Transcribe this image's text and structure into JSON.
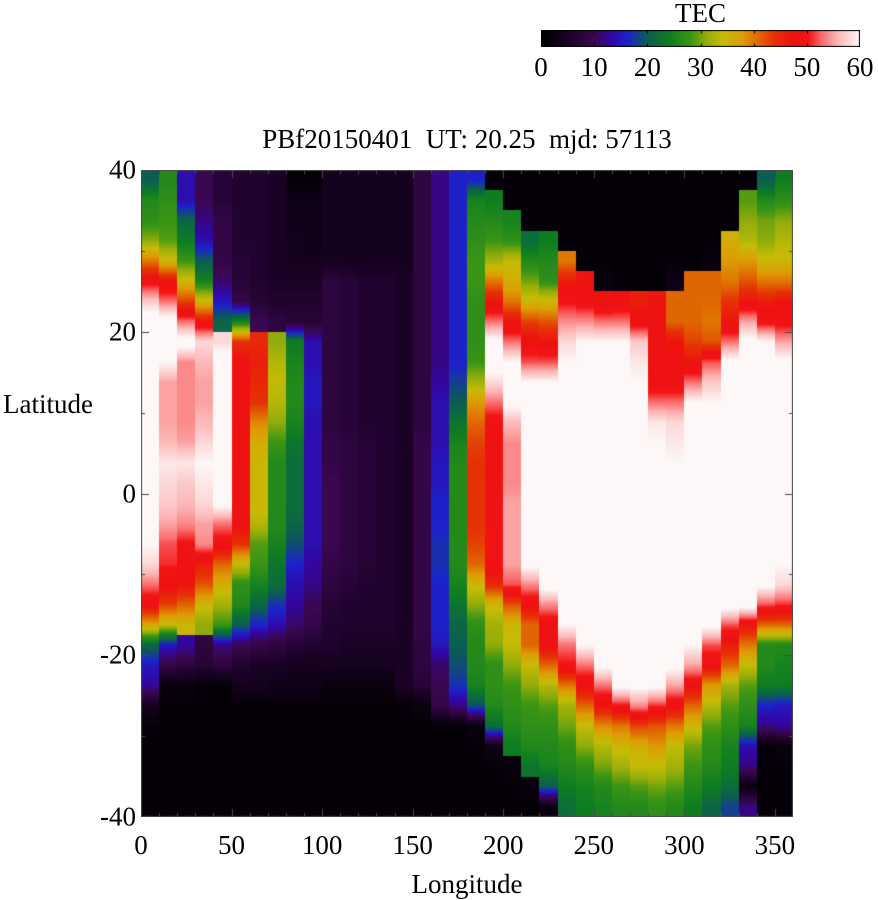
{
  "chart_data": {
    "type": "heatmap",
    "title": "PBf20150401  UT: 20.25  mjd: 57113",
    "xlabel": "Longitude",
    "ylabel": "Latitude",
    "xlim": [
      0,
      360
    ],
    "ylim": [
      -40,
      40
    ],
    "x_ticks": [
      0,
      50,
      100,
      150,
      200,
      250,
      300,
      350
    ],
    "x_minor_step": 10,
    "y_ticks": [
      40,
      20,
      0,
      -20,
      -40
    ],
    "y_minor_step": 10,
    "grid_lines": false,
    "colorbar": {
      "label": "TEC",
      "range": [
        0,
        60
      ],
      "ticks": [
        0,
        10,
        20,
        30,
        40,
        50,
        60
      ],
      "palette_stops": [
        {
          "t": 0.0,
          "color": "#000000"
        },
        {
          "t": 0.083,
          "color": "#1a0226"
        },
        {
          "t": 0.167,
          "color": "#3a0750"
        },
        {
          "t": 0.22,
          "color": "#3306a3"
        },
        {
          "t": 0.27,
          "color": "#1c23cc"
        },
        {
          "t": 0.333,
          "color": "#0b5e52"
        },
        {
          "t": 0.4,
          "color": "#0d7d22"
        },
        {
          "t": 0.47,
          "color": "#3c9614"
        },
        {
          "t": 0.52,
          "color": "#96ad0a"
        },
        {
          "t": 0.57,
          "color": "#c6bc06"
        },
        {
          "t": 0.63,
          "color": "#dd9d04"
        },
        {
          "t": 0.68,
          "color": "#e06a02"
        },
        {
          "t": 0.73,
          "color": "#e63205"
        },
        {
          "t": 0.79,
          "color": "#ee1111"
        },
        {
          "t": 0.84,
          "color": "#f31515"
        },
        {
          "t": 0.88,
          "color": "#f96c6c"
        },
        {
          "t": 0.93,
          "color": "#fcb6b6"
        },
        {
          "t": 1.0,
          "color": "#fdf7f7"
        }
      ]
    },
    "grid": {
      "lon_start": 0,
      "lon_step": 10,
      "lat_start": 40,
      "lat_step": -2.5,
      "cols": 36,
      "rows": 32
    },
    "values": [
      [
        20,
        26,
        14,
        10,
        7,
        6,
        6,
        5,
        1,
        1,
        4,
        4,
        4,
        4,
        4,
        8,
        12,
        16,
        16,
        1,
        1,
        1,
        1,
        1,
        1,
        1,
        1,
        1,
        1,
        1,
        1,
        1,
        1,
        1,
        20,
        24
      ],
      [
        26,
        27,
        14,
        10,
        7,
        6,
        6,
        5,
        3,
        3,
        4,
        4,
        4,
        4,
        4,
        8,
        12,
        16,
        25,
        24,
        1,
        1,
        1,
        1,
        1,
        1,
        1,
        1,
        1,
        1,
        1,
        1,
        1,
        29,
        26,
        27
      ],
      [
        27,
        28,
        21,
        12,
        9,
        6,
        6,
        5,
        3,
        3,
        4,
        4,
        4,
        4,
        4,
        8,
        12,
        16,
        26,
        26,
        25,
        1,
        1,
        1,
        1,
        1,
        1,
        1,
        1,
        1,
        1,
        1,
        1,
        31,
        30,
        31
      ],
      [
        31,
        29,
        24,
        14,
        9,
        6,
        6,
        5,
        4,
        3,
        4,
        4,
        4,
        4,
        4,
        8,
        12,
        16,
        27,
        28,
        27,
        22,
        24,
        1,
        1,
        1,
        1,
        1,
        1,
        1,
        1,
        1,
        36,
        33,
        31,
        33
      ],
      [
        40,
        35,
        28,
        20,
        9,
        7,
        6,
        5,
        4,
        4,
        4,
        4,
        4,
        4,
        4,
        8,
        12,
        16,
        28,
        32,
        34,
        26,
        26,
        40,
        1,
        1,
        1,
        1,
        1,
        1,
        1,
        2,
        38,
        38,
        35,
        35
      ],
      [
        49,
        47,
        35,
        25,
        11,
        7,
        6,
        5,
        5,
        5,
        8,
        7,
        6,
        6,
        5,
        8,
        12,
        16,
        28,
        40,
        36,
        30,
        27,
        46,
        47,
        2,
        1,
        1,
        1,
        3,
        41,
        41,
        40,
        42,
        40,
        40
      ],
      [
        57,
        53,
        43,
        35,
        15,
        9,
        7,
        6,
        6,
        6,
        8,
        7,
        6,
        6,
        5,
        8,
        12,
        16,
        27,
        47,
        40,
        35,
        35,
        50,
        49,
        47,
        48,
        46,
        47,
        41,
        41,
        41,
        44,
        47,
        46,
        47
      ],
      [
        63,
        62,
        53,
        47,
        21,
        25,
        10,
        8,
        7,
        7,
        8,
        7,
        6,
        6,
        5,
        8,
        12,
        16,
        27,
        53,
        47,
        43,
        42,
        54,
        54,
        53,
        53,
        48,
        48,
        41,
        41,
        40,
        47,
        55,
        49,
        49
      ],
      [
        63,
        63,
        62,
        58,
        58,
        44,
        45,
        31,
        24,
        14,
        8,
        7,
        6,
        6,
        5,
        8,
        12,
        16,
        27,
        61,
        53,
        48,
        47,
        58,
        60,
        60,
        60,
        57,
        48,
        47,
        43,
        42,
        53,
        61,
        60,
        55
      ],
      [
        63,
        60,
        54,
        56,
        62,
        48,
        46,
        33,
        25,
        14,
        8,
        7,
        6,
        6,
        5,
        8,
        12,
        16,
        28,
        62,
        60,
        52,
        52,
        60,
        61,
        62,
        62,
        59,
        48,
        48,
        47,
        52,
        61,
        62,
        62,
        61
      ],
      [
        62,
        55,
        54,
        55,
        62,
        48,
        45,
        34,
        26,
        15,
        8,
        7,
        6,
        6,
        5,
        8,
        13,
        18,
        32,
        58,
        62,
        60,
        60,
        61,
        62,
        62,
        62,
        60,
        48,
        48,
        53,
        57,
        62,
        62,
        62,
        62
      ],
      [
        61,
        55,
        54,
        55,
        61,
        48,
        44,
        33,
        26,
        15,
        8,
        7,
        6,
        6,
        5,
        8,
        14,
        20,
        38,
        53,
        61,
        62,
        62,
        62,
        62,
        62,
        62,
        61,
        53,
        53,
        60,
        60,
        62,
        63,
        63,
        62
      ],
      [
        61,
        55,
        54,
        56,
        60,
        48,
        39,
        31,
        25,
        14,
        8,
        7,
        6,
        6,
        5,
        8,
        14,
        23,
        41,
        49,
        56,
        62,
        62,
        62,
        62,
        62,
        62,
        61,
        59,
        58,
        61,
        61,
        62,
        63,
        63,
        62
      ],
      [
        60,
        56,
        55,
        58,
        60,
        47,
        36,
        28,
        23,
        14,
        9,
        8,
        7,
        6,
        5,
        9,
        14,
        25,
        43,
        48,
        54,
        62,
        62,
        62,
        62,
        62,
        62,
        62,
        60,
        59,
        61,
        61,
        62,
        63,
        63,
        62
      ],
      [
        62,
        59,
        59,
        60,
        61,
        48,
        35,
        26,
        22,
        14,
        9,
        8,
        7,
        6,
        5,
        9,
        15,
        26,
        44,
        48,
        54,
        62,
        62,
        62,
        62,
        62,
        62,
        62,
        61,
        60,
        62,
        62,
        62,
        63,
        63,
        62
      ],
      [
        62,
        58,
        57,
        59,
        61,
        48,
        35,
        26,
        22,
        14,
        10,
        8,
        7,
        6,
        5,
        9,
        15,
        26,
        44,
        49,
        54,
        62,
        62,
        62,
        62,
        62,
        62,
        62,
        61,
        61,
        62,
        62,
        62,
        63,
        63,
        62
      ],
      [
        61,
        57,
        56,
        58,
        61,
        48,
        35,
        26,
        22,
        14,
        10,
        8,
        7,
        6,
        5,
        9,
        16,
        26,
        44,
        49,
        55,
        62,
        62,
        62,
        62,
        62,
        62,
        62,
        62,
        61,
        62,
        62,
        62,
        63,
        62,
        62
      ],
      [
        61,
        55,
        54,
        55,
        53,
        48,
        33,
        26,
        21,
        14,
        10,
        8,
        7,
        6,
        5,
        9,
        16,
        26,
        44,
        49,
        55,
        62,
        62,
        62,
        62,
        62,
        62,
        62,
        62,
        61,
        62,
        62,
        62,
        62,
        62,
        61
      ],
      [
        60,
        52,
        50,
        54,
        49,
        44,
        29,
        25,
        19,
        14,
        10,
        8,
        7,
        6,
        5,
        9,
        17,
        26,
        43,
        50,
        55,
        62,
        62,
        62,
        62,
        62,
        62,
        62,
        62,
        62,
        62,
        62,
        62,
        62,
        62,
        61
      ],
      [
        58,
        51,
        48,
        46,
        41,
        34,
        28,
        23,
        16,
        13,
        9,
        8,
        7,
        6,
        5,
        9,
        17,
        26,
        41,
        49,
        55,
        61,
        62,
        62,
        62,
        62,
        62,
        62,
        62,
        62,
        62,
        61,
        62,
        62,
        61,
        60
      ],
      [
        53,
        48,
        47,
        42,
        36,
        27,
        25,
        22,
        14,
        12,
        8,
        7,
        6,
        6,
        5,
        9,
        16,
        25,
        35,
        45,
        52,
        54,
        62,
        62,
        62,
        62,
        62,
        62,
        62,
        62,
        62,
        61,
        62,
        62,
        61,
        58
      ],
      [
        48,
        43,
        41,
        35,
        32,
        26,
        21,
        17,
        13,
        10,
        7,
        6,
        6,
        6,
        5,
        9,
        16,
        23,
        31,
        35,
        42,
        48,
        54,
        62,
        62,
        62,
        62,
        62,
        62,
        62,
        62,
        62,
        62,
        62,
        52,
        51
      ],
      [
        37,
        34,
        35,
        31,
        28,
        20,
        16,
        14,
        11,
        9,
        6,
        6,
        6,
        6,
        5,
        9,
        16,
        21,
        27,
        32,
        35,
        41,
        48,
        60,
        62,
        62,
        62,
        62,
        62,
        62,
        62,
        61,
        52,
        47,
        41,
        41
      ],
      [
        21,
        15,
        13,
        8,
        12,
        10,
        9,
        8,
        7,
        6,
        6,
        5,
        5,
        5,
        5,
        8,
        15,
        20,
        26,
        31,
        34,
        41,
        48,
        53,
        60,
        61,
        62,
        62,
        62,
        61,
        60,
        52,
        46,
        40,
        26,
        26
      ],
      [
        15,
        9,
        8,
        7,
        8,
        6,
        5,
        5,
        4,
        4,
        4,
        4,
        4,
        4,
        5,
        8,
        11,
        19,
        26,
        27,
        31,
        34,
        41,
        50,
        53,
        61,
        62,
        62,
        62,
        61,
        55,
        48,
        41,
        34,
        26,
        25
      ],
      [
        13,
        2,
        2,
        1,
        1,
        4,
        4,
        3,
        3,
        3,
        2,
        2,
        2,
        2,
        5,
        7,
        10,
        17,
        25,
        27,
        28,
        31,
        33,
        40,
        48,
        53,
        61,
        61,
        61,
        55,
        48,
        38,
        32,
        29,
        24,
        24
      ],
      [
        4,
        1,
        1,
        1,
        1,
        1,
        1,
        1,
        1,
        1,
        1,
        1,
        1,
        1,
        1,
        2,
        9,
        12,
        19,
        26,
        27,
        28,
        29,
        32,
        41,
        47,
        50,
        54,
        51,
        48,
        41,
        33,
        29,
        27,
        16,
        15
      ],
      [
        1,
        1,
        1,
        1,
        1,
        1,
        1,
        1,
        1,
        1,
        1,
        1,
        1,
        1,
        1,
        1,
        1,
        1,
        2,
        22,
        26,
        27,
        27,
        30,
        34,
        39,
        40,
        43,
        42,
        40,
        35,
        29,
        27,
        25,
        12,
        13
      ],
      [
        1,
        1,
        1,
        1,
        1,
        1,
        1,
        1,
        1,
        1,
        1,
        1,
        1,
        1,
        1,
        1,
        1,
        1,
        1,
        3,
        24,
        26,
        26,
        27,
        31,
        33,
        35,
        36,
        38,
        34,
        30,
        27,
        25,
        14,
        1,
        2
      ],
      [
        1,
        1,
        1,
        1,
        1,
        1,
        1,
        1,
        1,
        1,
        1,
        1,
        1,
        1,
        1,
        1,
        1,
        1,
        1,
        1,
        2,
        23,
        25,
        26,
        27,
        30,
        32,
        34,
        34,
        32,
        28,
        26,
        24,
        12,
        1,
        1
      ],
      [
        1,
        1,
        1,
        1,
        1,
        1,
        1,
        1,
        1,
        1,
        1,
        1,
        1,
        1,
        1,
        1,
        1,
        1,
        1,
        1,
        1,
        2,
        20,
        24,
        25,
        26,
        28,
        29,
        30,
        29,
        26,
        24,
        22,
        2,
        1,
        1
      ],
      [
        1,
        1,
        1,
        1,
        1,
        1,
        1,
        1,
        1,
        1,
        1,
        1,
        1,
        1,
        1,
        1,
        1,
        1,
        1,
        1,
        1,
        1,
        2,
        22,
        24,
        25,
        26,
        26,
        27,
        26,
        24,
        21,
        18,
        12,
        1,
        1
      ]
    ]
  }
}
